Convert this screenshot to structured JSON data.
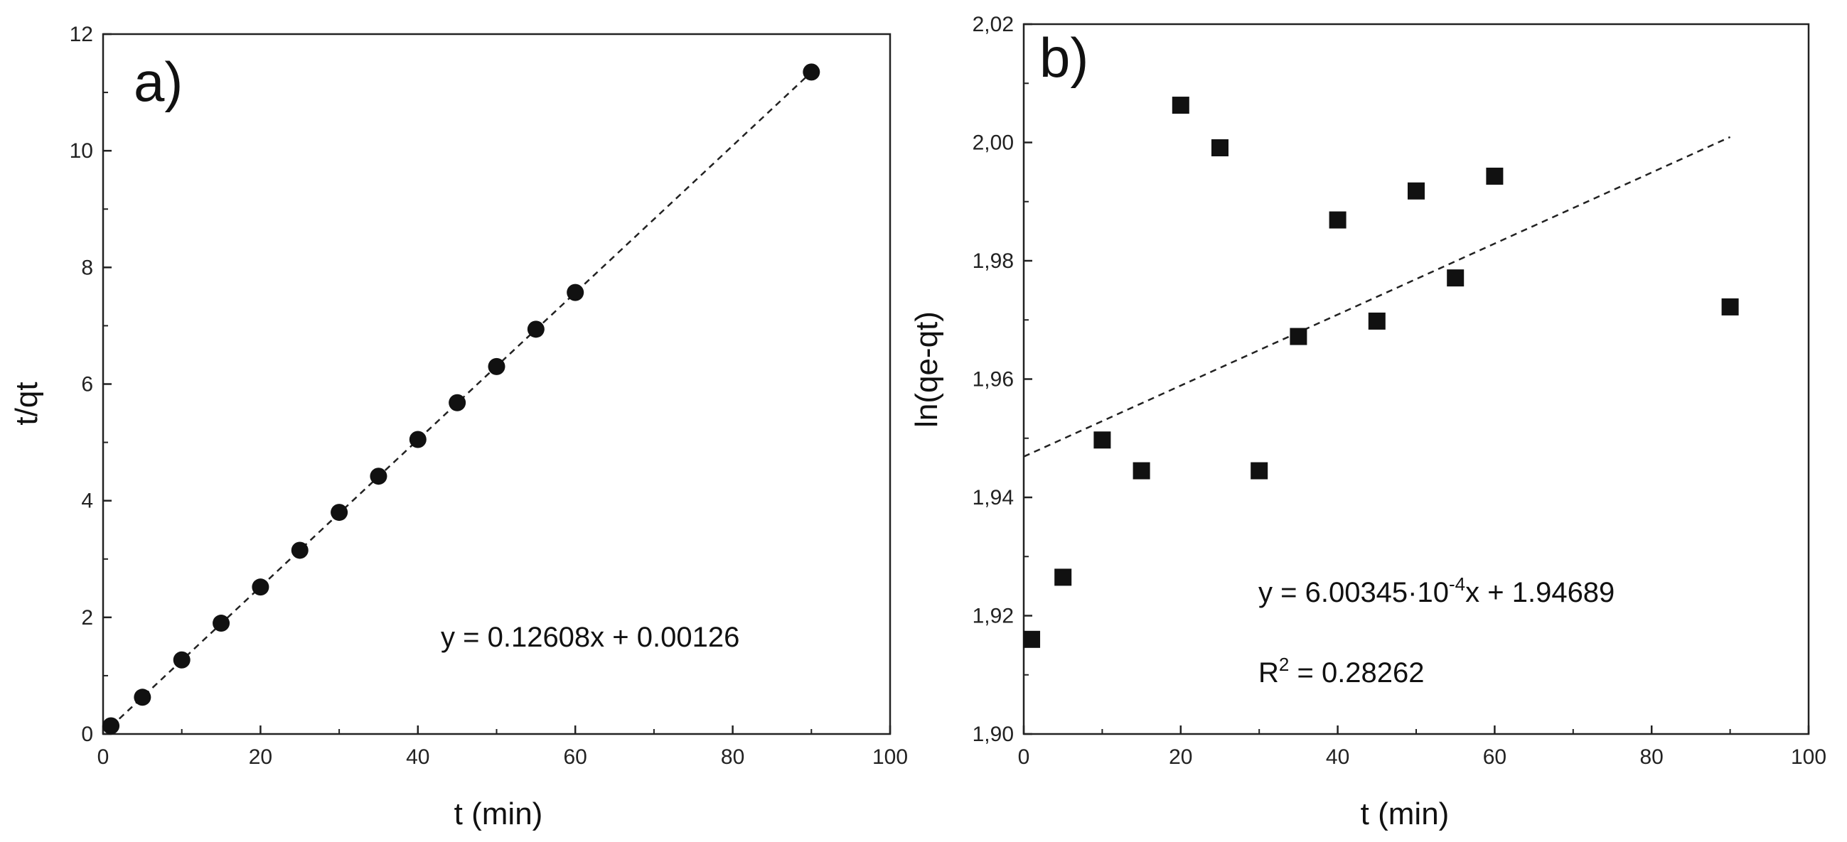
{
  "figure": {
    "panels": [
      "a)",
      "b)"
    ]
  },
  "chart_data": [
    {
      "type": "scatter",
      "panel_label": "a)",
      "xlabel": "t (min)",
      "ylabel": "t/qt",
      "xlim": [
        0,
        100
      ],
      "ylim": [
        0,
        12
      ],
      "xticks": [
        0,
        20,
        40,
        60,
        80,
        100
      ],
      "yticks": [
        0,
        2,
        4,
        6,
        8,
        10,
        12
      ],
      "ytick_labels": [
        "0",
        "2",
        "4",
        "6",
        "8",
        "10",
        "12"
      ],
      "marker": "circle",
      "series": [
        {
          "name": "data",
          "x": [
            1,
            5,
            10,
            15,
            20,
            25,
            30,
            35,
            40,
            45,
            50,
            55,
            60,
            90
          ],
          "y": [
            0.14,
            0.63,
            1.27,
            1.9,
            2.52,
            3.15,
            3.8,
            4.42,
            5.05,
            5.68,
            6.3,
            6.94,
            7.57,
            11.35
          ]
        }
      ],
      "fit": {
        "slope": 0.12608,
        "intercept": 0.00126,
        "x_range": [
          1,
          90
        ]
      },
      "annotations": [
        "y = 0.12608x + 0.00126"
      ]
    },
    {
      "type": "scatter",
      "panel_label": "b)",
      "xlabel": "t (min)",
      "ylabel": "ln(qe-qt)",
      "xlim": [
        0,
        100
      ],
      "ylim": [
        1.9,
        2.02
      ],
      "xticks": [
        0,
        20,
        40,
        60,
        80,
        100
      ],
      "yticks": [
        1.9,
        1.92,
        1.94,
        1.96,
        1.98,
        2.0,
        2.02
      ],
      "ytick_labels": [
        "1,90",
        "1,92",
        "1,94",
        "1,96",
        "1,98",
        "2,00",
        "2,02"
      ],
      "marker": "square",
      "series": [
        {
          "name": "data",
          "x": [
            1,
            5,
            10,
            15,
            20,
            25,
            30,
            35,
            40,
            45,
            50,
            55,
            60,
            90
          ],
          "y": [
            1.916,
            1.9265,
            1.9497,
            1.9445,
            2.0063,
            1.9991,
            1.9445,
            1.9672,
            1.9869,
            1.9698,
            1.9918,
            1.9771,
            1.9943,
            1.9722
          ]
        }
      ],
      "fit": {
        "slope": 0.000600345,
        "intercept": 1.94689,
        "x_range": [
          0,
          90
        ]
      },
      "annotations": [
        "y = 6.00345·10",
        "-4",
        "x + 1.94689",
        "R",
        "2",
        " = 0.28262"
      ]
    }
  ]
}
